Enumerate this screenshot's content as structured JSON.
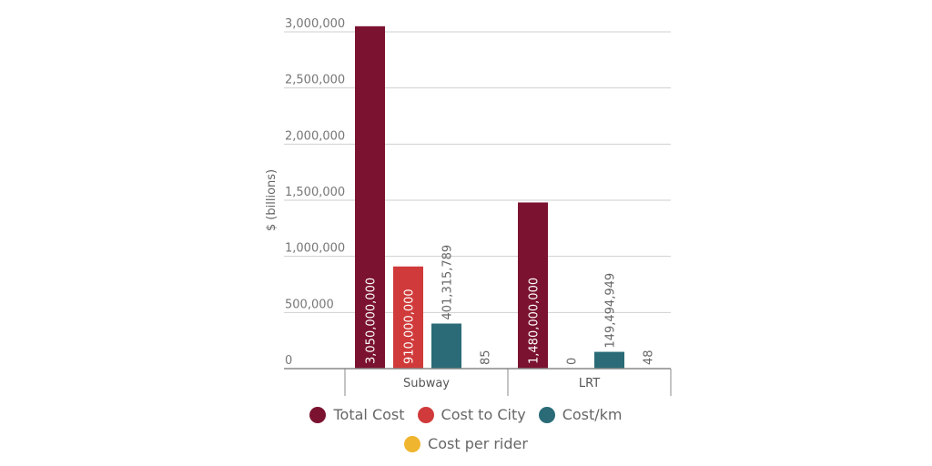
{
  "chart_data": {
    "type": "bar",
    "title": "",
    "xlabel": "",
    "ylabel": "$ (billions)",
    "ylim": [
      0,
      3000000
    ],
    "yticks": [
      0,
      500000,
      1000000,
      1500000,
      2000000,
      2500000,
      3000000
    ],
    "ytick_labels": [
      "0",
      "500,000",
      "1,000,000",
      "1,500,000",
      "2,000,000",
      "2,500,000",
      "3,000,000"
    ],
    "grid": true,
    "legend_position": "bottom",
    "categories": [
      "Subway",
      "LRT"
    ],
    "series": [
      {
        "name": "Total Cost",
        "color": "#7b1230",
        "values": [
          3050000,
          1480000
        ],
        "labels": [
          "3,050,000,000",
          "1,480,000,000"
        ]
      },
      {
        "name": "Cost to City",
        "color": "#d03a3a",
        "values": [
          910000,
          0
        ],
        "labels": [
          "910,000,000",
          "0"
        ]
      },
      {
        "name": "Cost/km",
        "color": "#2a6b77",
        "values": [
          401316,
          149495
        ],
        "labels": [
          "401,315,789",
          "149,494,949"
        ]
      },
      {
        "name": "Cost per rider",
        "color": "#f0b52e",
        "values": [
          0.085,
          0.048
        ],
        "labels": [
          "85",
          "48"
        ]
      }
    ]
  }
}
